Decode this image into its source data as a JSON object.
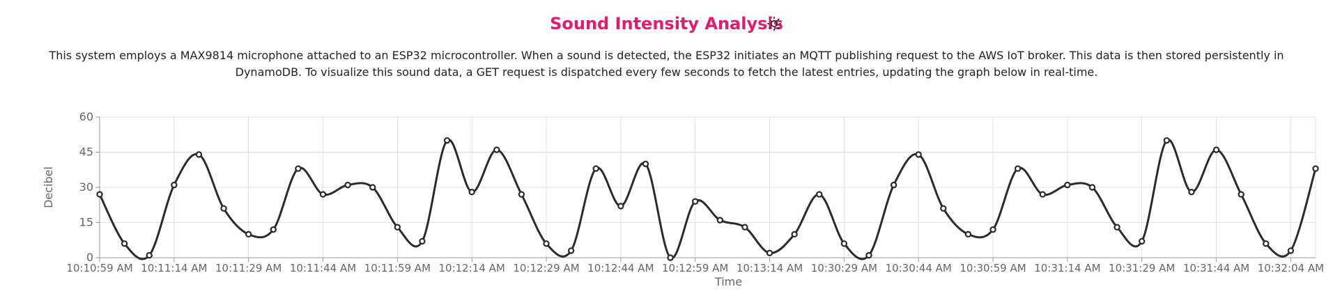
{
  "header": {
    "title": "Sound Intensity Analysis",
    "theme_toggle_icon": "sun-icon"
  },
  "description": "This system employs a MAX9814 microphone attached to an ESP32 microcontroller. When a sound is detected, the ESP32 initiates an MQTT publishing request to the AWS IoT broker. This data is then stored persistently in DynamoDB. To visualize this sound data, a GET request is dispatched every few seconds to fetch the latest entries, updating the graph below in real-time.",
  "colors": {
    "accent": "#e8196b",
    "line": "#2b2b2b",
    "grid": "#e2e2e2",
    "axis_text": "#666666"
  },
  "chart_data": {
    "type": "line",
    "xlabel": "Time",
    "ylabel": "Decibel",
    "ylim": [
      0,
      60
    ],
    "yticks": [
      0,
      15,
      30,
      45,
      60
    ],
    "grid": true,
    "curve": "smooth",
    "x_tick_labels": [
      "10:10:59 AM",
      "10:11:14 AM",
      "10:11:29 AM",
      "10:11:44 AM",
      "10:11:59 AM",
      "10:12:14 AM",
      "10:12:29 AM",
      "10:12:44 AM",
      "10:12:59 AM",
      "10:13:14 AM",
      "10:30:29 AM",
      "10:30:44 AM",
      "10:30:59 AM",
      "10:31:14 AM",
      "10:31:29 AM",
      "10:31:44 AM",
      "10:32:04 AM"
    ],
    "series": [
      {
        "values": [
          27,
          6,
          1,
          31,
          44,
          21,
          10,
          12,
          38,
          27,
          31,
          30,
          13,
          7,
          50,
          28,
          46,
          27,
          6,
          3,
          38,
          22,
          40,
          0,
          24,
          16,
          13,
          2,
          10,
          27,
          6,
          1,
          31,
          44,
          21,
          10,
          12,
          38,
          27,
          31,
          30,
          13,
          7,
          50,
          28,
          46,
          27,
          6,
          3,
          38
        ]
      }
    ]
  }
}
